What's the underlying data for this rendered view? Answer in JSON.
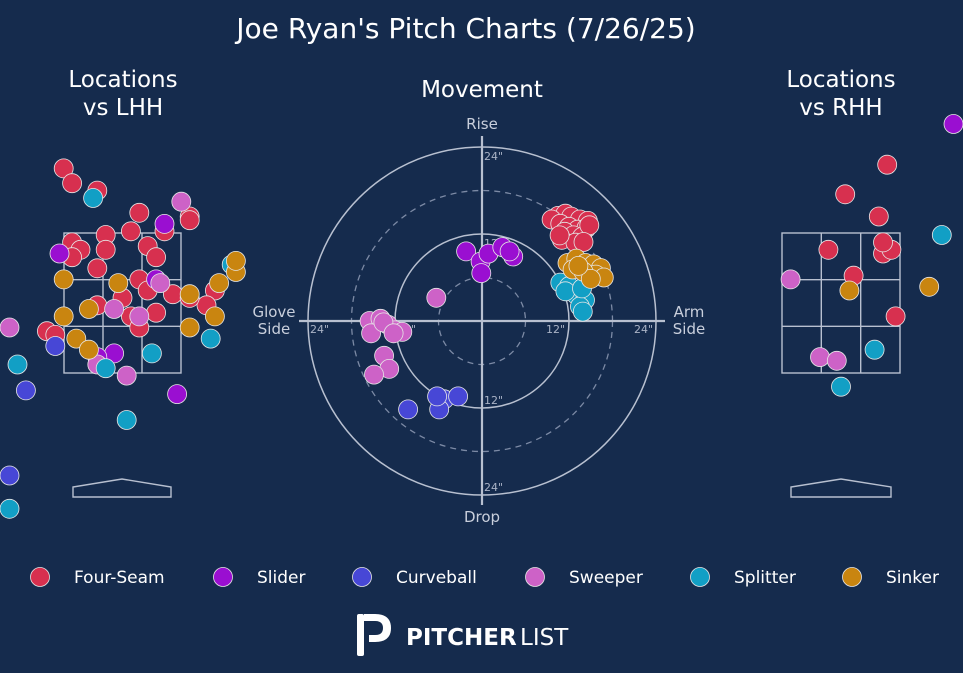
{
  "chart_data": {
    "type": "scatter",
    "title": "Joe Ryan's Pitch Charts (7/26/25)",
    "colors": {
      "background": "#152b4d",
      "Four-Seam": "#d7304f",
      "Slider": "#9a0fd1",
      "Curveball": "#4747d6",
      "Sweeper": "#cd62c7",
      "Splitter": "#129fc5",
      "Sinker": "#c98510"
    },
    "legend": {
      "placement": "bottom",
      "entries": [
        "Four-Seam",
        "Slider",
        "Curveball",
        "Sweeper",
        "Splitter",
        "Sinker"
      ]
    },
    "lhh": {
      "title_line1": "Locations",
      "title_line2": "vs LHH",
      "points": [
        {
          "type": "Four-Seam",
          "x": -0.7,
          "y": 4.4
        },
        {
          "type": "Four-Seam",
          "x": -0.6,
          "y": 4.2
        },
        {
          "type": "Four-Seam",
          "x": -0.3,
          "y": 4.1
        },
        {
          "type": "Four-Seam",
          "x": 0.2,
          "y": 3.8
        },
        {
          "type": "Four-Seam",
          "x": 0.8,
          "y": 3.75
        },
        {
          "type": "Four-Seam",
          "x": 0.5,
          "y": 3.55
        },
        {
          "type": "Four-Seam",
          "x": -0.6,
          "y": 3.4
        },
        {
          "type": "Four-Seam",
          "x": -0.5,
          "y": 3.3
        },
        {
          "type": "Four-Seam",
          "x": -0.2,
          "y": 3.5
        },
        {
          "type": "Four-Seam",
          "x": 0.1,
          "y": 3.55
        },
        {
          "type": "Four-Seam",
          "x": -0.2,
          "y": 3.3
        },
        {
          "type": "Four-Seam",
          "x": 0.3,
          "y": 3.35
        },
        {
          "type": "Four-Seam",
          "x": 0.4,
          "y": 3.2
        },
        {
          "type": "Four-Seam",
          "x": -0.6,
          "y": 3.2
        },
        {
          "type": "Four-Seam",
          "x": -0.3,
          "y": 3.05
        },
        {
          "type": "Four-Seam",
          "x": 0.2,
          "y": 2.9
        },
        {
          "type": "Four-Seam",
          "x": 0.3,
          "y": 2.75
        },
        {
          "type": "Four-Seam",
          "x": 0.0,
          "y": 2.65
        },
        {
          "type": "Four-Seam",
          "x": -0.3,
          "y": 2.55
        },
        {
          "type": "Four-Seam",
          "x": 0.6,
          "y": 2.7
        },
        {
          "type": "Four-Seam",
          "x": 0.4,
          "y": 2.45
        },
        {
          "type": "Four-Seam",
          "x": 0.1,
          "y": 2.4
        },
        {
          "type": "Four-Seam",
          "x": 0.2,
          "y": 2.25
        },
        {
          "type": "Four-Seam",
          "x": -0.9,
          "y": 2.2
        },
        {
          "type": "Four-Seam",
          "x": -0.8,
          "y": 2.15
        },
        {
          "type": "Four-Seam",
          "x": 1.1,
          "y": 2.75
        },
        {
          "type": "Four-Seam",
          "x": 1.0,
          "y": 2.55
        },
        {
          "type": "Four-Seam",
          "x": 0.8,
          "y": 2.65
        },
        {
          "type": "Four-Seam",
          "x": 0.8,
          "y": 3.7
        },
        {
          "type": "Slider",
          "x": -0.75,
          "y": 3.25
        },
        {
          "type": "Slider",
          "x": 0.5,
          "y": 3.65
        },
        {
          "type": "Slider",
          "x": 0.4,
          "y": 2.9
        },
        {
          "type": "Slider",
          "x": -0.1,
          "y": 1.9
        },
        {
          "type": "Slider",
          "x": 0.65,
          "y": 1.35
        },
        {
          "type": "Slider",
          "x": -0.3,
          "y": 1.85
        },
        {
          "type": "Curveball",
          "x": -1.15,
          "y": 1.4
        },
        {
          "type": "Curveball",
          "x": -1.5,
          "y": 0.25
        },
        {
          "type": "Curveball",
          "x": -0.8,
          "y": 2.0
        },
        {
          "type": "Sweeper",
          "x": 0.7,
          "y": 3.95
        },
        {
          "type": "Sweeper",
          "x": 0.45,
          "y": 2.85
        },
        {
          "type": "Sweeper",
          "x": -0.1,
          "y": 2.5
        },
        {
          "type": "Sweeper",
          "x": 0.2,
          "y": 2.4
        },
        {
          "type": "Sweeper",
          "x": -0.3,
          "y": 1.75
        },
        {
          "type": "Sweeper",
          "x": 0.05,
          "y": 1.6
        },
        {
          "type": "Sweeper",
          "x": -1.6,
          "y": 2.25
        },
        {
          "type": "Splitter",
          "x": -0.35,
          "y": 4.0
        },
        {
          "type": "Splitter",
          "x": 1.3,
          "y": 3.1
        },
        {
          "type": "Splitter",
          "x": 1.05,
          "y": 2.1
        },
        {
          "type": "Splitter",
          "x": 0.35,
          "y": 1.9
        },
        {
          "type": "Splitter",
          "x": -0.2,
          "y": 1.7
        },
        {
          "type": "Splitter",
          "x": -1.25,
          "y": 1.75
        },
        {
          "type": "Splitter",
          "x": 0.05,
          "y": 1.0
        },
        {
          "type": "Splitter",
          "x": -1.55,
          "y": -0.2
        },
        {
          "type": "Sinker",
          "x": 1.35,
          "y": 3.0
        },
        {
          "type": "Sinker",
          "x": 1.35,
          "y": 3.15
        },
        {
          "type": "Sinker",
          "x": 1.15,
          "y": 2.85
        },
        {
          "type": "Sinker",
          "x": -0.7,
          "y": 2.9
        },
        {
          "type": "Sinker",
          "x": -0.05,
          "y": 2.85
        },
        {
          "type": "Sinker",
          "x": 0.8,
          "y": 2.7
        },
        {
          "type": "Sinker",
          "x": 1.1,
          "y": 2.4
        },
        {
          "type": "Sinker",
          "x": -0.7,
          "y": 2.4
        },
        {
          "type": "Sinker",
          "x": -0.4,
          "y": 2.5
        },
        {
          "type": "Sinker",
          "x": -0.55,
          "y": 2.1
        },
        {
          "type": "Sinker",
          "x": -0.4,
          "y": 1.95
        },
        {
          "type": "Sinker",
          "x": 0.8,
          "y": 2.25
        }
      ]
    },
    "movement": {
      "title": "Movement",
      "label_top": "Rise",
      "label_bottom": "Drop",
      "label_left_1": "Glove",
      "label_left_2": "Side",
      "label_right_1": "Arm",
      "label_right_2": "Side",
      "ring_labels": [
        "12\"",
        "24\""
      ],
      "points": [
        {
          "type": "Four-Seam",
          "x": 10.5,
          "y": 14.5
        },
        {
          "type": "Four-Seam",
          "x": 11.5,
          "y": 14.8
        },
        {
          "type": "Four-Seam",
          "x": 12.3,
          "y": 14.4
        },
        {
          "type": "Four-Seam",
          "x": 13.5,
          "y": 14.0
        },
        {
          "type": "Four-Seam",
          "x": 14.6,
          "y": 13.8
        },
        {
          "type": "Four-Seam",
          "x": 9.6,
          "y": 14.0
        },
        {
          "type": "Four-Seam",
          "x": 10.8,
          "y": 13.4
        },
        {
          "type": "Four-Seam",
          "x": 12.0,
          "y": 13.0
        },
        {
          "type": "Four-Seam",
          "x": 13.2,
          "y": 12.6
        },
        {
          "type": "Four-Seam",
          "x": 14.4,
          "y": 12.8
        },
        {
          "type": "Four-Seam",
          "x": 11.4,
          "y": 12.3
        },
        {
          "type": "Four-Seam",
          "x": 12.6,
          "y": 11.8
        },
        {
          "type": "Four-Seam",
          "x": 13.8,
          "y": 11.6
        },
        {
          "type": "Four-Seam",
          "x": 11.0,
          "y": 11.2
        },
        {
          "type": "Four-Seam",
          "x": 14.8,
          "y": 13.2
        },
        {
          "type": "Four-Seam",
          "x": 12.9,
          "y": 10.8
        },
        {
          "type": "Four-Seam",
          "x": 10.7,
          "y": 11.8
        },
        {
          "type": "Four-Seam",
          "x": 14.0,
          "y": 10.9
        },
        {
          "type": "Slider",
          "x": -2.2,
          "y": 9.6
        },
        {
          "type": "Slider",
          "x": -0.2,
          "y": 8.2
        },
        {
          "type": "Slider",
          "x": 0.9,
          "y": 9.3
        },
        {
          "type": "Slider",
          "x": 2.8,
          "y": 10.2
        },
        {
          "type": "Slider",
          "x": 4.3,
          "y": 8.9
        },
        {
          "type": "Slider",
          "x": 3.8,
          "y": 9.6
        },
        {
          "type": "Slider",
          "x": -0.1,
          "y": 6.6
        },
        {
          "type": "Curveball",
          "x": -5.2,
          "y": -10.8
        },
        {
          "type": "Curveball",
          "x": -5.9,
          "y": -12.2
        },
        {
          "type": "Curveball",
          "x": -3.3,
          "y": -10.4
        },
        {
          "type": "Curveball",
          "x": -10.2,
          "y": -12.2
        },
        {
          "type": "Curveball",
          "x": -6.2,
          "y": -10.4
        },
        {
          "type": "Sweeper",
          "x": -6.3,
          "y": 3.2
        },
        {
          "type": "Sweeper",
          "x": -15.5,
          "y": 0.0
        },
        {
          "type": "Sweeper",
          "x": -14.0,
          "y": 0.3
        },
        {
          "type": "Sweeper",
          "x": -13.0,
          "y": -0.5
        },
        {
          "type": "Sweeper",
          "x": -12.0,
          "y": -1.3
        },
        {
          "type": "Sweeper",
          "x": -11.0,
          "y": -1.5
        },
        {
          "type": "Sweeper",
          "x": -15.3,
          "y": -1.7
        },
        {
          "type": "Sweeper",
          "x": -13.6,
          "y": -0.2
        },
        {
          "type": "Sweeper",
          "x": -13.5,
          "y": -4.8
        },
        {
          "type": "Sweeper",
          "x": -12.8,
          "y": -6.6
        },
        {
          "type": "Sweeper",
          "x": -14.9,
          "y": -7.4
        },
        {
          "type": "Sweeper",
          "x": -12.2,
          "y": -1.7
        },
        {
          "type": "Splitter",
          "x": 10.8,
          "y": 5.3
        },
        {
          "type": "Splitter",
          "x": 12.0,
          "y": 4.8
        },
        {
          "type": "Splitter",
          "x": 13.0,
          "y": 3.6
        },
        {
          "type": "Splitter",
          "x": 14.2,
          "y": 2.9
        },
        {
          "type": "Splitter",
          "x": 13.5,
          "y": 2.0
        },
        {
          "type": "Splitter",
          "x": 11.5,
          "y": 4.1
        },
        {
          "type": "Splitter",
          "x": 13.8,
          "y": 4.5
        },
        {
          "type": "Splitter",
          "x": 13.9,
          "y": 1.3
        },
        {
          "type": "Sinker",
          "x": 11.8,
          "y": 8.0
        },
        {
          "type": "Sinker",
          "x": 13.0,
          "y": 8.6
        },
        {
          "type": "Sinker",
          "x": 14.3,
          "y": 8.0
        },
        {
          "type": "Sinker",
          "x": 15.4,
          "y": 7.8
        },
        {
          "type": "Sinker",
          "x": 16.4,
          "y": 7.3
        },
        {
          "type": "Sinker",
          "x": 12.5,
          "y": 7.1
        },
        {
          "type": "Sinker",
          "x": 15.7,
          "y": 6.4
        },
        {
          "type": "Sinker",
          "x": 16.8,
          "y": 6.0
        },
        {
          "type": "Sinker",
          "x": 14.0,
          "y": 6.8
        },
        {
          "type": "Sinker",
          "x": 15.0,
          "y": 5.8
        },
        {
          "type": "Sinker",
          "x": 13.3,
          "y": 7.6
        }
      ]
    },
    "rhh": {
      "title_line1": "Locations",
      "title_line2": "vs RHH",
      "points": [
        {
          "type": "Four-Seam",
          "x": 0.55,
          "y": 4.45
        },
        {
          "type": "Four-Seam",
          "x": 0.05,
          "y": 4.05
        },
        {
          "type": "Four-Seam",
          "x": 0.45,
          "y": 3.75
        },
        {
          "type": "Four-Seam",
          "x": 0.5,
          "y": 3.25
        },
        {
          "type": "Four-Seam",
          "x": 0.6,
          "y": 3.3
        },
        {
          "type": "Four-Seam",
          "x": 0.5,
          "y": 3.4
        },
        {
          "type": "Four-Seam",
          "x": -0.15,
          "y": 3.3
        },
        {
          "type": "Four-Seam",
          "x": 0.15,
          "y": 2.95
        },
        {
          "type": "Four-Seam",
          "x": 0.65,
          "y": 2.4
        },
        {
          "type": "Slider",
          "x": 5.0,
          "y": 5.0
        },
        {
          "type": "Sweeper",
          "x": -0.6,
          "y": 2.9
        },
        {
          "type": "Sweeper",
          "x": -0.25,
          "y": 1.85
        },
        {
          "type": "Sweeper",
          "x": -0.05,
          "y": 1.8
        },
        {
          "type": "Splitter",
          "x": 1.2,
          "y": 3.5
        },
        {
          "type": "Splitter",
          "x": 0.4,
          "y": 1.95
        },
        {
          "type": "Splitter",
          "x": 0.0,
          "y": 1.45
        },
        {
          "type": "Sinker",
          "x": 0.1,
          "y": 2.75
        },
        {
          "type": "Sinker",
          "x": 1.05,
          "y": 2.8
        }
      ]
    }
  },
  "branding": {
    "logo_text_bold": "PITCHER",
    "logo_text_light": "LIST"
  }
}
